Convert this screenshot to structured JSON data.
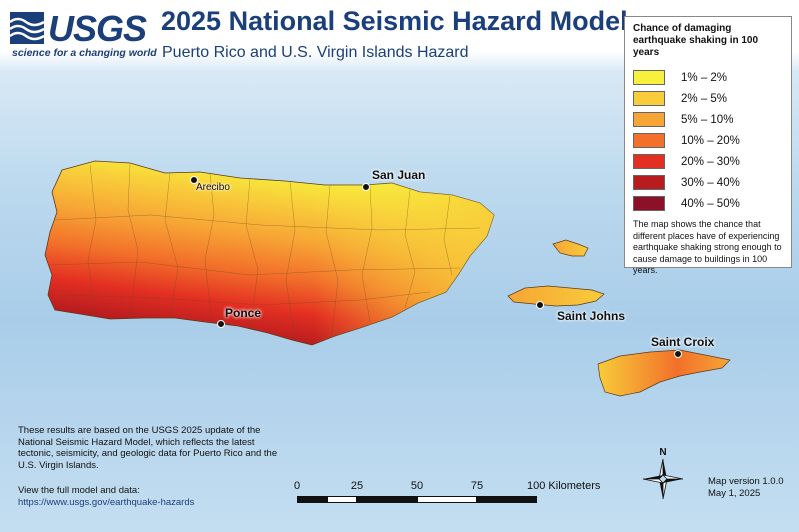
{
  "header": {
    "agency": "USGS",
    "tagline": "science for a changing world",
    "title": "2025 National Seismic Hazard Model",
    "subtitle": "Puerto Rico and U.S. Virgin Islands Hazard"
  },
  "legend": {
    "title": "Chance of damaging earthquake shaking in 100 years",
    "items": [
      {
        "label": "1% – 2%",
        "color": "#f7f03c"
      },
      {
        "label": "2% – 5%",
        "color": "#f8cc3a"
      },
      {
        "label": "5% – 10%",
        "color": "#f7a535"
      },
      {
        "label": "10% – 20%",
        "color": "#f2702a"
      },
      {
        "label": "20% – 30%",
        "color": "#e32f22"
      },
      {
        "label": "30% – 40%",
        "color": "#b81c1f"
      },
      {
        "label": "40% – 50%",
        "color": "#8b1028"
      }
    ],
    "description": "The map shows the chance that different places have of experiencing earthquake shaking strong enough to cause damage to buildings in 100 years."
  },
  "places": {
    "arecibo": "Arecibo",
    "san_juan": "San Juan",
    "ponce": "Ponce",
    "saint_johns": "Saint Johns",
    "saint_croix": "Saint Croix"
  },
  "footnote": "These results are based on the USGS 2025 update of the National Seismic Hazard Model, which reflects the latest tectonic, seismicity, and geologic data for Puerto Rico and the U.S. Virgin Islands.",
  "link_label": "View the full model and data:",
  "link_url": "https://www.usgs.gov/earthquake-hazards",
  "scale_bar": {
    "ticks": [
      "0",
      "25",
      "50",
      "75",
      "100 Kilometers"
    ]
  },
  "compass": {
    "north": "N"
  },
  "version": {
    "line1": "Map version 1.0.0",
    "line2": "May 1, 2025"
  }
}
